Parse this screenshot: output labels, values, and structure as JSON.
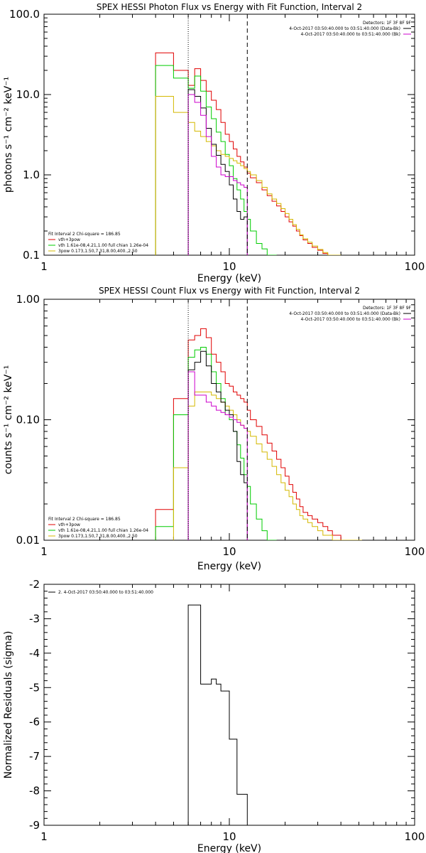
{
  "colors": {
    "black": "#000000",
    "red": "#e00000",
    "green": "#00cc00",
    "yellow": "#d4b800",
    "magenta": "#cc00cc",
    "blue": "#0000cc"
  },
  "chart_data": [
    {
      "type": "line",
      "subtype": "histogram-step",
      "title": "SPEX HESSI Photon Flux vs Energy with Fit Function, Interval 2",
      "xlabel": "Energy (keV)",
      "ylabel": "photons s⁻¹ cm⁻² keV⁻¹",
      "xscale": "log",
      "yscale": "log",
      "xlim": [
        1,
        100
      ],
      "ylim": [
        0.1,
        100
      ],
      "xticks": [
        "1",
        "10",
        "100"
      ],
      "yticks": [
        "0.1",
        "1.0",
        "10.0",
        "100.0"
      ],
      "vlines": [
        {
          "x": 6.0,
          "style": "dotted"
        },
        {
          "x": 12.5,
          "style": "dashed"
        }
      ],
      "legend_right": {
        "header": "Detectors: 1F 3F 8F 9F",
        "entries": [
          "4-Oct-2017 03:50:40.000 to 03:51:40.000 (Data-Bk)",
          "4-Oct-2017 03:50:40.000 to 03:51:40.000 (Bk)"
        ]
      },
      "legend_left": {
        "header": "Fit Interval 2   Chi-square = 186.85",
        "entries": [
          "vth+3pow",
          "vth 1.61e-08,4.21,1.00  full chian 1.26e-04",
          "3pow 0.173,1.50,7.31,8.00,400.,2.50"
        ]
      },
      "series": [
        {
          "color": "red",
          "edges": [
            4,
            5,
            6,
            6.5,
            7,
            7.5,
            8,
            8.5,
            9,
            9.5,
            10,
            10.5,
            11,
            11.5,
            12,
            12.5,
            13,
            14,
            15,
            16,
            17,
            18,
            19,
            20,
            21,
            22,
            23,
            24,
            25,
            26.5,
            28,
            30,
            32,
            34,
            36,
            40
          ],
          "values": [
            33,
            20,
            13,
            21,
            15,
            11,
            8.5,
            6.5,
            4.5,
            3.2,
            2.6,
            2.1,
            1.7,
            1.45,
            1.25,
            1.05,
            0.92,
            0.8,
            0.65,
            0.55,
            0.47,
            0.41,
            0.35,
            0.3,
            0.26,
            0.23,
            0.2,
            0.175,
            0.155,
            0.14,
            0.125,
            0.115,
            0.105,
            0.1,
            0.1
          ]
        },
        {
          "color": "green",
          "edges": [
            4,
            5,
            6,
            6.5,
            7,
            7.5,
            8,
            8.5,
            9,
            9.5,
            10,
            10.5,
            11,
            11.5,
            12,
            12.5,
            13,
            14,
            15,
            16,
            17,
            18
          ],
          "values": [
            23,
            16,
            12,
            17,
            11,
            7,
            5,
            3.4,
            2.6,
            1.8,
            1.3,
            0.9,
            0.65,
            0.5,
            0.35,
            0.28,
            0.2,
            0.14,
            0.12,
            0.1,
            0.1
          ]
        },
        {
          "color": "yellow",
          "edges": [
            4,
            5,
            6,
            6.5,
            7,
            7.5,
            8,
            8.5,
            9,
            9.5,
            10,
            10.5,
            11,
            11.5,
            12,
            12.5,
            13,
            14,
            15,
            16,
            17,
            18,
            19,
            20,
            21,
            22,
            23,
            24,
            25,
            26.5,
            28,
            30,
            32,
            34,
            36,
            40
          ],
          "values": [
            9.5,
            6,
            4.5,
            3.5,
            3,
            2.6,
            2.3,
            2,
            1.8,
            1.7,
            1.6,
            1.5,
            1.4,
            1.3,
            1.2,
            1.1,
            1.0,
            0.85,
            0.7,
            0.58,
            0.5,
            0.44,
            0.38,
            0.33,
            0.28,
            0.24,
            0.21,
            0.18,
            0.16,
            0.145,
            0.13,
            0.118,
            0.108,
            0.1,
            0.1
          ]
        },
        {
          "color": "black",
          "edges": [
            6,
            6.5,
            7,
            7.5,
            8,
            8.5,
            9,
            9.5,
            10,
            10.5,
            11,
            11.5,
            12,
            12.5
          ],
          "values": [
            11.5,
            9.5,
            6.8,
            3.8,
            2.4,
            1.75,
            1.35,
            1.1,
            0.75,
            0.5,
            0.35,
            0.28,
            0.3
          ]
        },
        {
          "color": "magenta",
          "edges": [
            6,
            6.5,
            7,
            7.5,
            8,
            8.5,
            9,
            9.5,
            10,
            10.5,
            11,
            11.5,
            12,
            12.5
          ],
          "values": [
            10,
            8,
            5.5,
            3,
            1.7,
            1.25,
            1.0,
            0.95,
            0.95,
            0.85,
            0.8,
            0.75,
            0.7
          ]
        }
      ]
    },
    {
      "type": "line",
      "subtype": "histogram-step",
      "title": "SPEX HESSI Count Flux vs Energy with Fit Function, Interval 2",
      "xlabel": "Energy (keV)",
      "ylabel": "counts s⁻¹ cm⁻² keV⁻¹",
      "xscale": "log",
      "yscale": "log",
      "xlim": [
        1,
        100
      ],
      "ylim": [
        0.01,
        1
      ],
      "xticks": [
        "1",
        "10",
        "100"
      ],
      "yticks": [
        "0.01",
        "0.10",
        "1.00"
      ],
      "vlines": [
        {
          "x": 6.0,
          "style": "dotted"
        },
        {
          "x": 12.5,
          "style": "dashed"
        }
      ],
      "legend_right": {
        "header": "Detectors: 1F 3F 8F 9F",
        "entries": [
          "4-Oct-2017 03:50:40.000 to 03:51:40.000 (Data-Bk)",
          "4-Oct-2017 03:50:40.000 to 03:51:40.000 (Bk)"
        ]
      },
      "legend_left": {
        "header": "Fit Interval 2   Chi-square = 186.85",
        "entries": [
          "vth+3pow",
          "vth 1.61e-08,4.21,1.00  full chian 1.26e-04",
          "3pow 0.173,1.50,7.31,8.00,400.,2.50"
        ]
      },
      "series": [
        {
          "color": "red",
          "edges": [
            4,
            5,
            6,
            6.5,
            7,
            7.5,
            8,
            8.5,
            9,
            9.5,
            10,
            10.5,
            11,
            11.5,
            12,
            12.5,
            13,
            14,
            15,
            16,
            17,
            18,
            19,
            20,
            21,
            22,
            23,
            24,
            25,
            26.5,
            28,
            30,
            32,
            34,
            36,
            40,
            44,
            48,
            52
          ],
          "values": [
            0.018,
            0.15,
            0.46,
            0.5,
            0.57,
            0.48,
            0.35,
            0.3,
            0.25,
            0.2,
            0.19,
            0.17,
            0.16,
            0.15,
            0.14,
            0.12,
            0.1,
            0.088,
            0.075,
            0.064,
            0.055,
            0.047,
            0.04,
            0.034,
            0.029,
            0.025,
            0.022,
            0.019,
            0.017,
            0.016,
            0.015,
            0.014,
            0.013,
            0.012,
            0.011,
            0.01,
            0.01,
            0.01
          ]
        },
        {
          "color": "green",
          "edges": [
            4,
            5,
            6,
            6.5,
            7,
            7.5,
            8,
            8.5,
            9,
            9.5,
            10,
            10.5,
            11,
            11.5,
            12,
            12.5,
            13,
            14,
            15,
            16,
            17,
            18
          ],
          "values": [
            0.013,
            0.11,
            0.33,
            0.38,
            0.4,
            0.35,
            0.25,
            0.2,
            0.15,
            0.11,
            0.1,
            0.08,
            0.062,
            0.048,
            0.035,
            0.028,
            0.02,
            0.015,
            0.012,
            0.01,
            0.01
          ]
        },
        {
          "color": "yellow",
          "edges": [
            5,
            6,
            6.5,
            7,
            7.5,
            8,
            8.5,
            9,
            9.5,
            10,
            10.5,
            11,
            11.5,
            12,
            12.5,
            13,
            14,
            15,
            16,
            17,
            18,
            19,
            20,
            21,
            22,
            23,
            24,
            25,
            26.5,
            28,
            30,
            32,
            34,
            36,
            40,
            44,
            48,
            52
          ],
          "values": [
            0.04,
            0.13,
            0.17,
            0.17,
            0.17,
            0.16,
            0.15,
            0.14,
            0.13,
            0.12,
            0.11,
            0.1,
            0.09,
            0.085,
            0.08,
            0.073,
            0.063,
            0.054,
            0.047,
            0.041,
            0.035,
            0.03,
            0.026,
            0.023,
            0.02,
            0.018,
            0.016,
            0.015,
            0.014,
            0.013,
            0.012,
            0.011,
            0.011,
            0.01,
            0.01,
            0.01,
            0.01
          ]
        },
        {
          "color": "black",
          "edges": [
            6,
            6.5,
            7,
            7.5,
            8,
            8.5,
            9,
            9.5,
            10,
            10.5,
            11,
            11.5,
            12,
            12.5
          ],
          "values": [
            0.26,
            0.3,
            0.37,
            0.28,
            0.2,
            0.17,
            0.14,
            0.12,
            0.11,
            0.08,
            0.045,
            0.035,
            0.03
          ]
        },
        {
          "color": "magenta",
          "edges": [
            6,
            6.5,
            7,
            7.5,
            8,
            8.5,
            9,
            9.5,
            10,
            10.5,
            11,
            11.5,
            12,
            12.5
          ],
          "values": [
            0.25,
            0.16,
            0.16,
            0.14,
            0.13,
            0.12,
            0.115,
            0.11,
            0.105,
            0.1,
            0.095,
            0.09,
            0.085
          ]
        }
      ]
    },
    {
      "type": "line",
      "subtype": "histogram-step",
      "title": "",
      "xlabel": "Energy (keV)",
      "ylabel": "Normalized Residuals (sigma)",
      "xscale": "log",
      "yscale": "linear",
      "xlim": [
        1,
        100
      ],
      "ylim": [
        -9,
        -2
      ],
      "xticks": [
        "1",
        "10",
        "100"
      ],
      "yticks": [
        "-9",
        "-8",
        "-7",
        "-6",
        "-5",
        "-4",
        "-3",
        "-2"
      ],
      "legend_left": {
        "entries": [
          "2.  4-Oct-2017 03:50:40.000 to 03:51:40.000"
        ]
      },
      "series": [
        {
          "color": "black",
          "edges": [
            6,
            7,
            8,
            8.5,
            9,
            10,
            10.5,
            11,
            12.5
          ],
          "values": [
            -2.6,
            -4.9,
            -4.75,
            -4.9,
            -5.1,
            -6.5,
            -6.5,
            -8.1
          ]
        }
      ]
    }
  ]
}
